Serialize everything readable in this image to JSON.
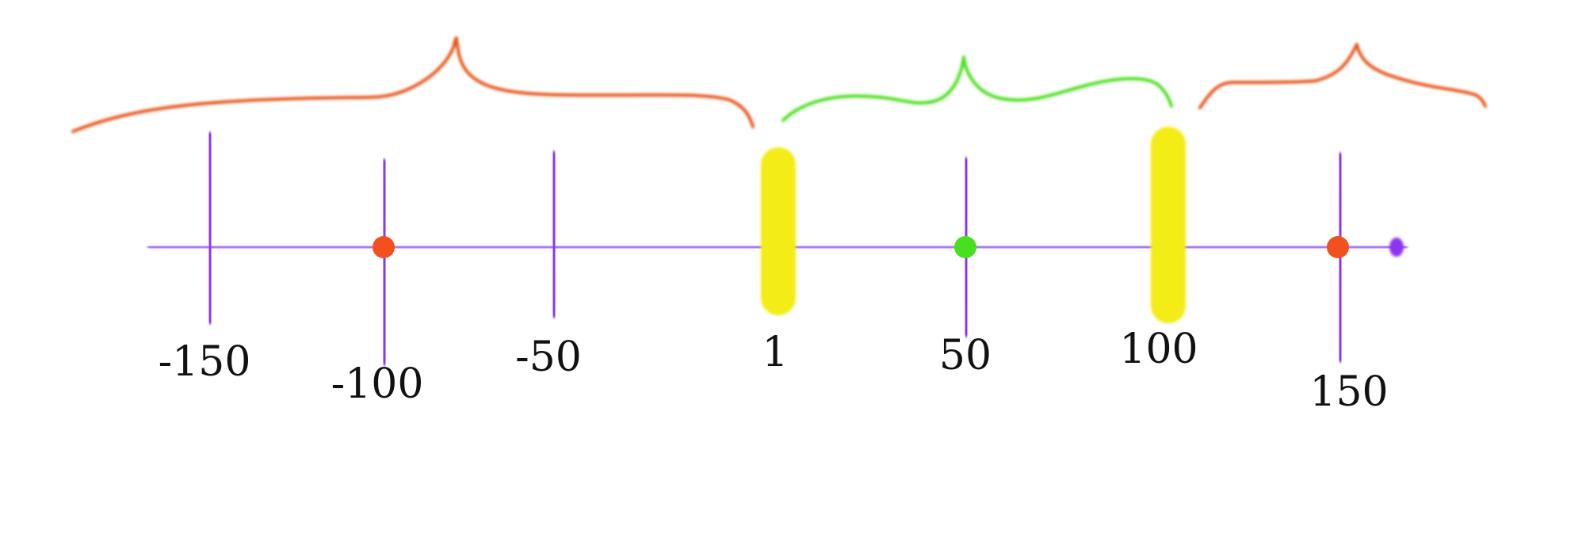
{
  "number_line": {
    "colors": {
      "line": "#a56cf4",
      "tick": "#8a34f2",
      "boundary_marker": "#f3ec12",
      "outside_brace": "#e8551c",
      "inside_brace": "#4ae01e",
      "outside_point": "#f2501c",
      "inside_point": "#46e01e",
      "label": "#111111"
    },
    "ticks": [
      {
        "value": -150,
        "label": "-150"
      },
      {
        "value": -100,
        "label": "-100"
      },
      {
        "value": -50,
        "label": "-50"
      },
      {
        "value": 1,
        "label": "1"
      },
      {
        "value": 50,
        "label": "50"
      },
      {
        "value": 100,
        "label": "100"
      },
      {
        "value": 150,
        "label": "150"
      }
    ],
    "boundary_markers": [
      1,
      100
    ],
    "points": [
      {
        "value": -100,
        "kind": "outside"
      },
      {
        "value": 50,
        "kind": "inside"
      },
      {
        "value": 150,
        "kind": "outside"
      }
    ],
    "braces": [
      {
        "from": "left-end",
        "to": 1,
        "kind": "outside"
      },
      {
        "from": 1,
        "to": 100,
        "kind": "inside"
      },
      {
        "from": 100,
        "to": "right-end",
        "kind": "outside"
      }
    ]
  }
}
